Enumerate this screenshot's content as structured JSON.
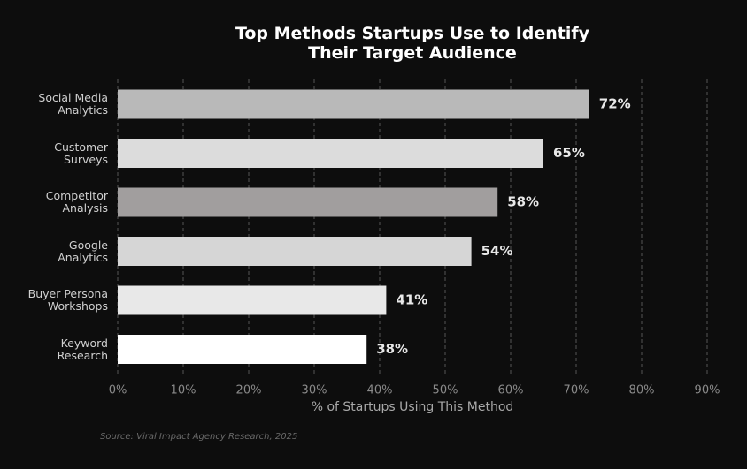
{
  "chart_data": {
    "type": "bar",
    "orientation": "horizontal",
    "title": "Top Methods Startups Use to Identify\nTheir Target Audience",
    "categories": [
      "Social Media\nAnalytics",
      "Customer\nSurveys",
      "Competitor\nAnalysis",
      "Google\nAnalytics",
      "Buyer Persona\nWorkshops",
      "Keyword\nResearch"
    ],
    "values": [
      72,
      65,
      58,
      54,
      41,
      38
    ],
    "value_labels": [
      "72%",
      "65%",
      "58%",
      "54%",
      "41%",
      "38%"
    ],
    "colors": [
      "#b9b9b9",
      "#dcdcdc",
      "#a19e9e",
      "#d6d6d6",
      "#e8e8e8",
      "#ffffff"
    ],
    "xlim": [
      0,
      90
    ],
    "xticks": [
      {
        "value": 0,
        "label": "0%"
      },
      {
        "value": 10,
        "label": "10%"
      },
      {
        "value": 20,
        "label": "20%"
      },
      {
        "value": 30,
        "label": "30%"
      },
      {
        "value": 40,
        "label": "40%"
      },
      {
        "value": 50,
        "label": "50%"
      },
      {
        "value": 60,
        "label": "60%"
      },
      {
        "value": 70,
        "label": "70%"
      },
      {
        "value": 80,
        "label": "80%"
      },
      {
        "value": 90,
        "label": "90%"
      }
    ],
    "xlabel": "% of Startups Using This Method",
    "grid": true,
    "source": "Source: Viral Impact Agency Research, 2025"
  }
}
